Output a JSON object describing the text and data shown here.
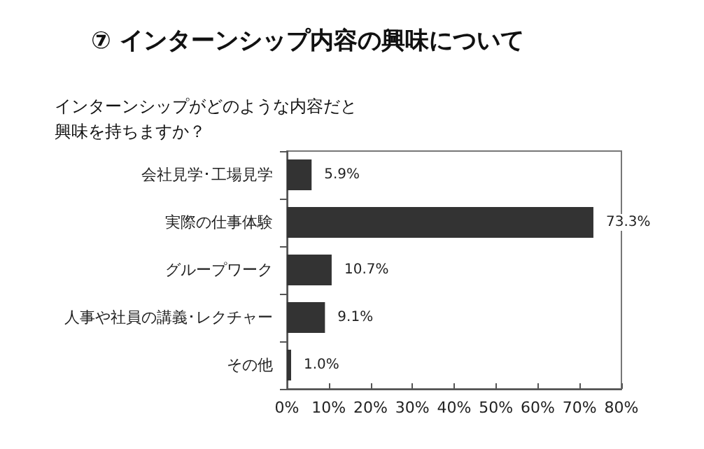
{
  "chart_data": {
    "type": "bar",
    "orientation": "horizontal",
    "title": "⑦ インターンシップ内容の興味について",
    "subtitle": "インターンシップがどのような内容だと興味を持ちますか？",
    "categories": [
      "会社見学･工場見学",
      "実際の仕事体験",
      "グループワーク",
      "人事や社員の講義･レクチャー",
      "その他"
    ],
    "values": [
      5.9,
      73.3,
      10.7,
      9.1,
      1.0
    ],
    "value_labels": [
      "5.9%",
      "73.3%",
      "10.7%",
      "9.1%",
      "1.0%"
    ],
    "color": "#333333",
    "xlim": [
      0,
      80
    ],
    "xticks": [
      {
        "value": 0,
        "label": "0%"
      },
      {
        "value": 10,
        "label": "10%"
      },
      {
        "value": 20,
        "label": "20%"
      },
      {
        "value": 30,
        "label": "30%"
      },
      {
        "value": 40,
        "label": "40%"
      },
      {
        "value": 50,
        "label": "50%"
      },
      {
        "value": 60,
        "label": "60%"
      },
      {
        "value": 70,
        "label": "70%"
      },
      {
        "value": 80,
        "label": "80%"
      }
    ],
    "grid": false
  }
}
